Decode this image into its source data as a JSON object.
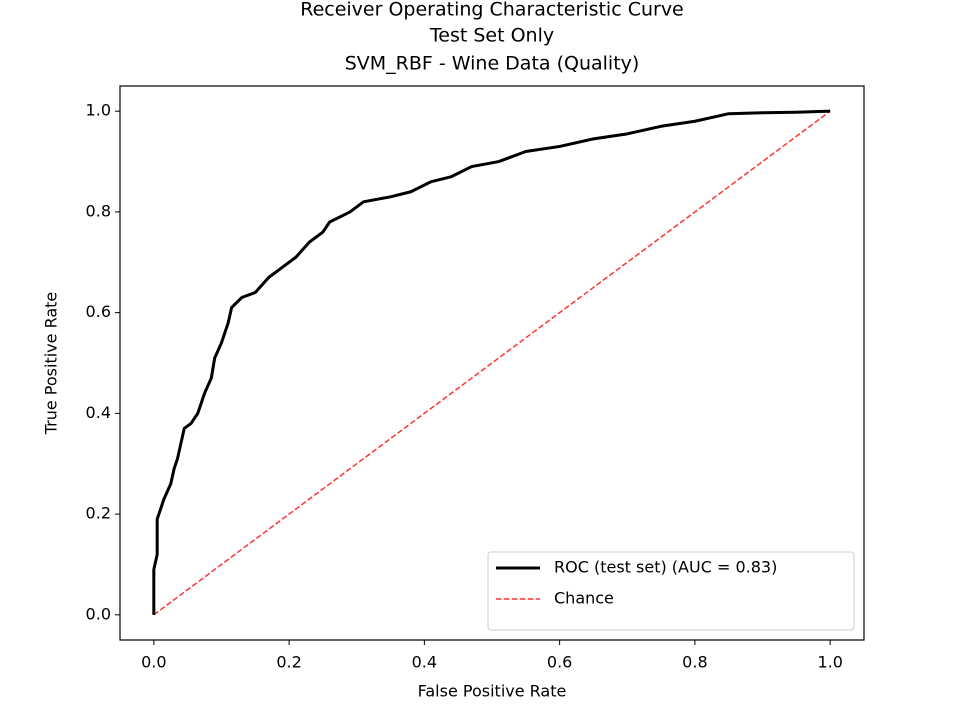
{
  "chart_data": {
    "type": "line",
    "title": [
      "Receiver Operating Characteristic Curve",
      "Test Set Only",
      "SVM_RBF - Wine Data (Quality)"
    ],
    "xlabel": "False Positive Rate",
    "ylabel": "True Positive Rate",
    "xlim": [
      -0.05,
      1.05
    ],
    "ylim": [
      -0.05,
      1.05
    ],
    "xticks": [
      {
        "value": 0,
        "label": "0.0"
      },
      0.2,
      0.4,
      0.6,
      0.8,
      {
        "value": 1,
        "label": "1.0"
      }
    ],
    "yticks": [
      {
        "value": 0,
        "label": "0.0"
      },
      0.2,
      0.4,
      0.6,
      0.8,
      {
        "value": 1,
        "label": "1.0"
      }
    ],
    "legend": "lower right",
    "series": [
      {
        "name": "ROC (test set) (AUC = 0.83)",
        "color": "#000000",
        "linestyle": "solid",
        "x": [
          0,
          0,
          0.005,
          0.005,
          0.01,
          0.015,
          0.025,
          0.03,
          0.035,
          0.045,
          0.055,
          0.065,
          0.075,
          0.085,
          0.09,
          0.1,
          0.11,
          0.115,
          0.13,
          0.15,
          0.17,
          0.19,
          0.21,
          0.23,
          0.25,
          0.26,
          0.29,
          0.31,
          0.35,
          0.38,
          0.41,
          0.44,
          0.47,
          0.51,
          0.55,
          0.6,
          0.65,
          0.7,
          0.75,
          0.8,
          0.85,
          0.9,
          0.95,
          1
        ],
        "values": [
          0,
          0.09,
          0.12,
          0.19,
          0.21,
          0.23,
          0.26,
          0.29,
          0.31,
          0.37,
          0.38,
          0.4,
          0.44,
          0.47,
          0.51,
          0.54,
          0.58,
          0.61,
          0.63,
          0.64,
          0.67,
          0.69,
          0.71,
          0.74,
          0.76,
          0.78,
          0.8,
          0.82,
          0.83,
          0.84,
          0.86,
          0.87,
          0.89,
          0.9,
          0.92,
          0.93,
          0.945,
          0.955,
          0.97,
          0.98,
          0.995,
          0.997,
          0.998,
          1
        ]
      },
      {
        "name": "Chance",
        "color": "#ff3333",
        "linestyle": "dashed",
        "x": [
          0,
          1
        ],
        "values": [
          0,
          1
        ]
      }
    ]
  }
}
